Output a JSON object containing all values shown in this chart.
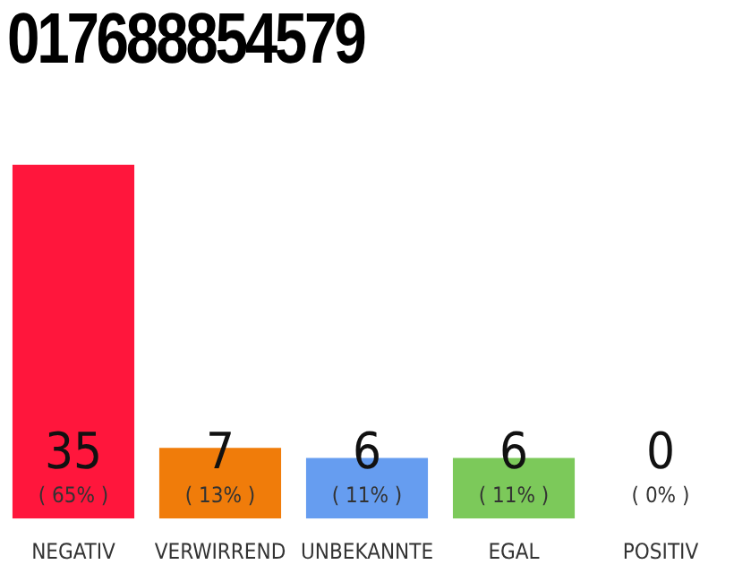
{
  "chart_data": {
    "type": "bar",
    "title": "017688854579",
    "categories": [
      "NEGATIV",
      "VERWIRREND",
      "UNBEKANNTE",
      "EGAL",
      "POSITIV"
    ],
    "values": [
      35,
      7,
      6,
      6,
      0
    ],
    "colors": [
      "#ff163c",
      "#f07c0a",
      "#669df0",
      "#7cc95a",
      "#22aa44"
    ],
    "value_labels": [
      "35\n( 65% )",
      "7\n( 13% )",
      "6\n( 11% )",
      "6\n( 11% )",
      "0\n( 0% )"
    ]
  }
}
